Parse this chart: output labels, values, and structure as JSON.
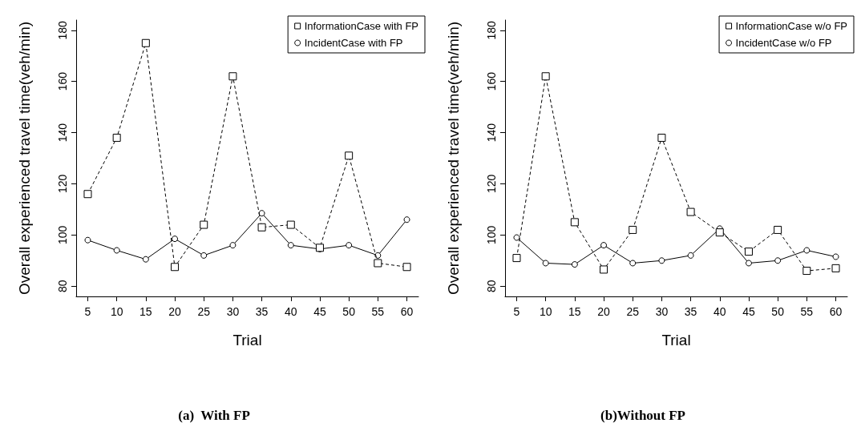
{
  "chart_data": [
    {
      "type": "line",
      "title": "(a)  With FP",
      "xlabel": "Trial",
      "ylabel": "Overall experienced travel time(veh/min)",
      "x": [
        5,
        10,
        15,
        20,
        25,
        30,
        35,
        40,
        45,
        50,
        55,
        60
      ],
      "xlim": [
        3,
        62
      ],
      "xticks": [
        5,
        10,
        15,
        20,
        25,
        30,
        35,
        40,
        45,
        50,
        55,
        60
      ],
      "ylim": [
        76,
        184
      ],
      "yticks": [
        80,
        100,
        120,
        140,
        160,
        180
      ],
      "grid": false,
      "legend": "top right",
      "series": [
        {
          "name": "InformationCase with FP",
          "color": "#000000",
          "marker": "square",
          "line_style": "dashed",
          "values": [
            116,
            138,
            175,
            87.5,
            104,
            162,
            103,
            104,
            95,
            131,
            89,
            87.5
          ]
        },
        {
          "name": "IncidentCase with FP",
          "color": "#000000",
          "marker": "circle",
          "line_style": "solid",
          "values": [
            98,
            94,
            90.5,
            98.5,
            92,
            96,
            108.5,
            96,
            94.5,
            96,
            92,
            106
          ]
        }
      ]
    },
    {
      "type": "line",
      "title": "(b)Without FP",
      "xlabel": "Trial",
      "ylabel": "Overall experienced travel time(veh/min)",
      "x": [
        5,
        10,
        15,
        20,
        25,
        30,
        35,
        40,
        45,
        50,
        55,
        60
      ],
      "xlim": [
        3,
        62
      ],
      "xticks": [
        5,
        10,
        15,
        20,
        25,
        30,
        35,
        40,
        45,
        50,
        55,
        60
      ],
      "ylim": [
        76,
        184
      ],
      "yticks": [
        80,
        100,
        120,
        140,
        160,
        180
      ],
      "grid": false,
      "legend": "top right",
      "series": [
        {
          "name": "InformationCase w/o FP",
          "color": "#000000",
          "marker": "square",
          "line_style": "dashed",
          "values": [
            91,
            162,
            105,
            86.5,
            102,
            138,
            109,
            101,
            93.5,
            102,
            86,
            87
          ]
        },
        {
          "name": "IncidentCase w/o FP",
          "color": "#000000",
          "marker": "circle",
          "line_style": "solid",
          "values": [
            99,
            89,
            88.5,
            96,
            89,
            90,
            92,
            102.5,
            89,
            90,
            94,
            91.5
          ]
        }
      ]
    }
  ]
}
